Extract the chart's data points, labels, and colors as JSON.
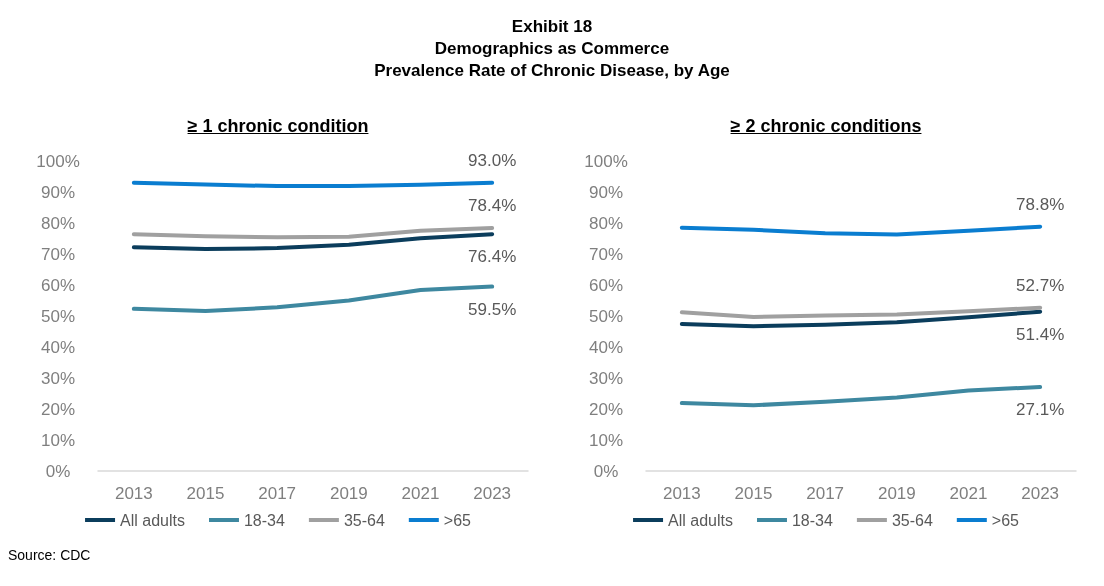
{
  "chart_data": [
    {
      "type": "line",
      "title": "Exhibit 18\nDemographics as Commerce\nPrevalence Rate of Chronic Disease, by Age",
      "subtitle": "≥ 1 chronic condition",
      "categories": [
        "2013",
        "2015",
        "2017",
        "2019",
        "2021",
        "2023"
      ],
      "series": [
        {
          "name": "All adults",
          "color": "#0b3d5c",
          "values": [
            72.2,
            71.6,
            71.9,
            73.0,
            75.1,
            76.4
          ],
          "value_labels": [
            null,
            null,
            null,
            null,
            null,
            "76.4%"
          ]
        },
        {
          "name": "18-34",
          "color": "#3e88a0",
          "values": [
            52.3,
            51.6,
            52.8,
            55.0,
            58.4,
            59.5
          ],
          "value_labels": [
            null,
            null,
            null,
            null,
            null,
            "59.5%"
          ]
        },
        {
          "name": "35-64",
          "color": "#a0a0a0",
          "values": [
            76.4,
            75.7,
            75.4,
            75.6,
            77.5,
            78.4
          ],
          "value_labels": [
            null,
            null,
            null,
            null,
            null,
            "78.4%"
          ]
        },
        {
          "name": ">65",
          "color": "#0a7dd0",
          "values": [
            93.0,
            92.4,
            91.9,
            91.9,
            92.3,
            93.0
          ],
          "value_labels": [
            null,
            null,
            null,
            null,
            null,
            "93.0%"
          ]
        }
      ],
      "ylim": [
        0,
        100
      ],
      "yticks": [
        {
          "value": 0,
          "label": "0%"
        },
        {
          "value": 10,
          "label": "10%"
        },
        {
          "value": 20,
          "label": "20%"
        },
        {
          "value": 30,
          "label": "30%"
        },
        {
          "value": 40,
          "label": "40%"
        },
        {
          "value": 50,
          "label": "50%"
        },
        {
          "value": 60,
          "label": "60%"
        },
        {
          "value": 70,
          "label": "70%"
        },
        {
          "value": 80,
          "label": "80%"
        },
        {
          "value": 90,
          "label": "90%"
        },
        {
          "value": 100,
          "label": "100%"
        }
      ],
      "grid": false,
      "legend": "bottom",
      "marker": "none",
      "line_style": "solid",
      "annotations": [
        "Source: CDC"
      ]
    },
    {
      "type": "line",
      "subtitle": "≥ 2 chronic conditions",
      "categories": [
        "2013",
        "2015",
        "2017",
        "2019",
        "2021",
        "2023"
      ],
      "series": [
        {
          "name": "All adults",
          "color": "#0b3d5c",
          "values": [
            47.4,
            46.7,
            47.2,
            48.0,
            49.6,
            51.4
          ],
          "value_labels": [
            null,
            null,
            null,
            null,
            null,
            "51.4%"
          ]
        },
        {
          "name": "18-34",
          "color": "#3e88a0",
          "values": [
            21.9,
            21.2,
            22.3,
            23.7,
            26.0,
            27.1
          ],
          "value_labels": [
            null,
            null,
            null,
            null,
            null,
            "27.1%"
          ]
        },
        {
          "name": "35-64",
          "color": "#a0a0a0",
          "values": [
            51.2,
            49.7,
            50.2,
            50.5,
            51.5,
            52.7
          ],
          "value_labels": [
            null,
            null,
            null,
            null,
            null,
            "52.7%"
          ]
        },
        {
          "name": ">65",
          "color": "#0a7dd0",
          "values": [
            78.5,
            77.8,
            76.7,
            76.3,
            77.5,
            78.8
          ],
          "value_labels": [
            null,
            null,
            null,
            null,
            null,
            "78.8%"
          ]
        }
      ],
      "ylim": [
        0,
        100
      ],
      "yticks": [
        {
          "value": 0,
          "label": "0%"
        },
        {
          "value": 10,
          "label": "10%"
        },
        {
          "value": 20,
          "label": "20%"
        },
        {
          "value": 30,
          "label": "30%"
        },
        {
          "value": 40,
          "label": "40%"
        },
        {
          "value": 50,
          "label": "50%"
        },
        {
          "value": 60,
          "label": "60%"
        },
        {
          "value": 70,
          "label": "70%"
        },
        {
          "value": 80,
          "label": "80%"
        },
        {
          "value": 90,
          "label": "90%"
        },
        {
          "value": 100,
          "label": "100%"
        }
      ],
      "grid": false,
      "legend": "bottom",
      "marker": "none",
      "line_style": "solid"
    }
  ]
}
